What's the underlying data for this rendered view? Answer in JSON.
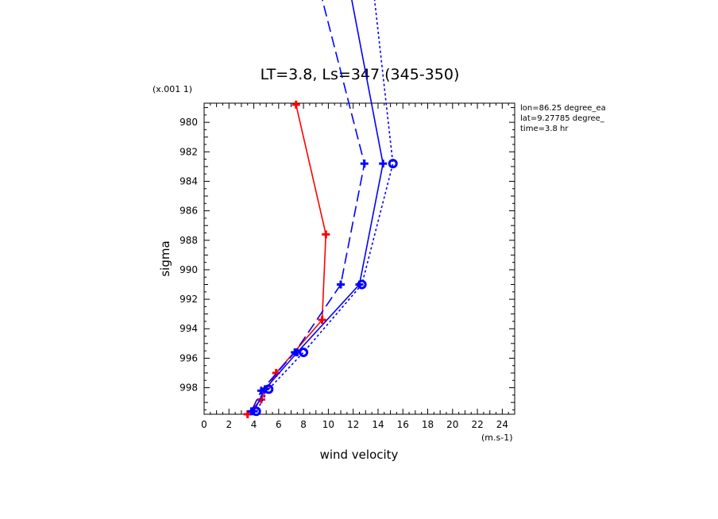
{
  "chart_data": {
    "type": "line",
    "title": "LT=3.8, Ls=347 (345-350)",
    "xlabel": "wind velocity",
    "ylabel": "sigma",
    "x_units": "(m.s-1)",
    "y_scale_note": "(x.001 1)",
    "xlim": [
      0,
      25
    ],
    "ylim": [
      999.8,
      978.7
    ],
    "x_ticks": [
      0,
      2,
      4,
      6,
      8,
      10,
      12,
      14,
      16,
      18,
      20,
      22,
      24
    ],
    "y_ticks": [
      980,
      982,
      984,
      986,
      988,
      990,
      992,
      994,
      996,
      998
    ],
    "annotations": [
      "lon=86.25 degree_ea",
      "lat=9.27785 degree_",
      "time=3.8 hr"
    ],
    "grid": false,
    "series": [
      {
        "color": "#ff0000",
        "dash": "solid",
        "marker": "plus",
        "x": [
          7.4,
          9.8,
          9.5,
          5.8,
          4.6,
          3.5
        ],
        "y": [
          978.8,
          987.6,
          993.4,
          997.0,
          998.8,
          999.8
        ]
      },
      {
        "color": "#0000ff",
        "dash": "dashed",
        "marker": "plus",
        "x": [
          9.0,
          12.9,
          11.0,
          7.3,
          4.6,
          3.8
        ],
        "y": [
          970.0,
          982.8,
          991.0,
          995.6,
          998.2,
          999.6
        ]
      },
      {
        "color": "#0000ff",
        "dash": "solid",
        "marker": "plus",
        "x": [
          11.5,
          14.4,
          12.5,
          7.5,
          4.9,
          4.0
        ],
        "y": [
          970.0,
          982.8,
          991.0,
          995.6,
          998.1,
          999.6
        ]
      },
      {
        "color": "#0000ff",
        "dash": "dotted",
        "marker": "circle",
        "x": [
          13.5,
          15.2,
          12.7,
          8.0,
          5.2,
          4.2
        ],
        "y": [
          970.0,
          982.8,
          991.0,
          995.6,
          998.1,
          999.6
        ]
      }
    ]
  }
}
